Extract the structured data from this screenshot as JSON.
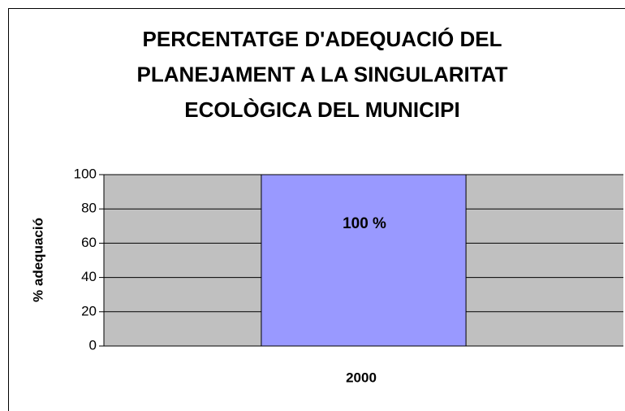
{
  "chart_data": {
    "type": "bar",
    "title": [
      "PERCENTATGE D'ADEQUACIÓ DEL",
      "PLANEJAMENT A LA SINGULARITAT",
      "ECOLÒGICA DEL MUNICIPI"
    ],
    "ylabel": "% adequació",
    "categories": [
      "2000"
    ],
    "values": [
      100
    ],
    "value_labels": [
      "100 %"
    ],
    "color": "#9999ff",
    "plot_background": "#c0c0c0",
    "ylim": [
      0,
      100
    ],
    "yticks": [
      0,
      20,
      40,
      60,
      80,
      100
    ],
    "grid": true
  }
}
